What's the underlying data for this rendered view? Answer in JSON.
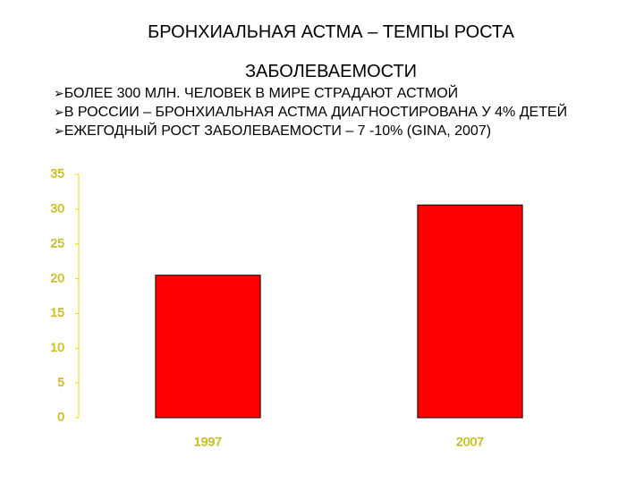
{
  "header": {
    "title": "БРОНХИАЛЬНАЯ АСТМА – ТЕМПЫ РОСТА ЗАБОЛЕВАЕМОСТИ",
    "bullets": [
      "БОЛЕЕ 300 МЛН. ЧЕЛОВЕК В МИРЕ СТРАДАЮТ АСТМОЙ",
      "В РОССИИ – БРОНХИАЛЬНАЯ АСТМА ДИАГНОСТИРОВАНА У 4% ДЕТЕЙ",
      "ЕЖЕГОДНЫЙ РОСТ ЗАБОЛЕВАЕМОСТИ – 7 -10%   (GINA, 2007)"
    ]
  },
  "chart_data": {
    "type": "bar",
    "categories": [
      "1997",
      "2007"
    ],
    "values": [
      20.5,
      30.6
    ],
    "color": "#ff0000",
    "axis_color": "#e8dc00",
    "ylim": [
      0,
      35
    ],
    "yticks": [
      0,
      5,
      10,
      15,
      20,
      25,
      30,
      35
    ]
  }
}
